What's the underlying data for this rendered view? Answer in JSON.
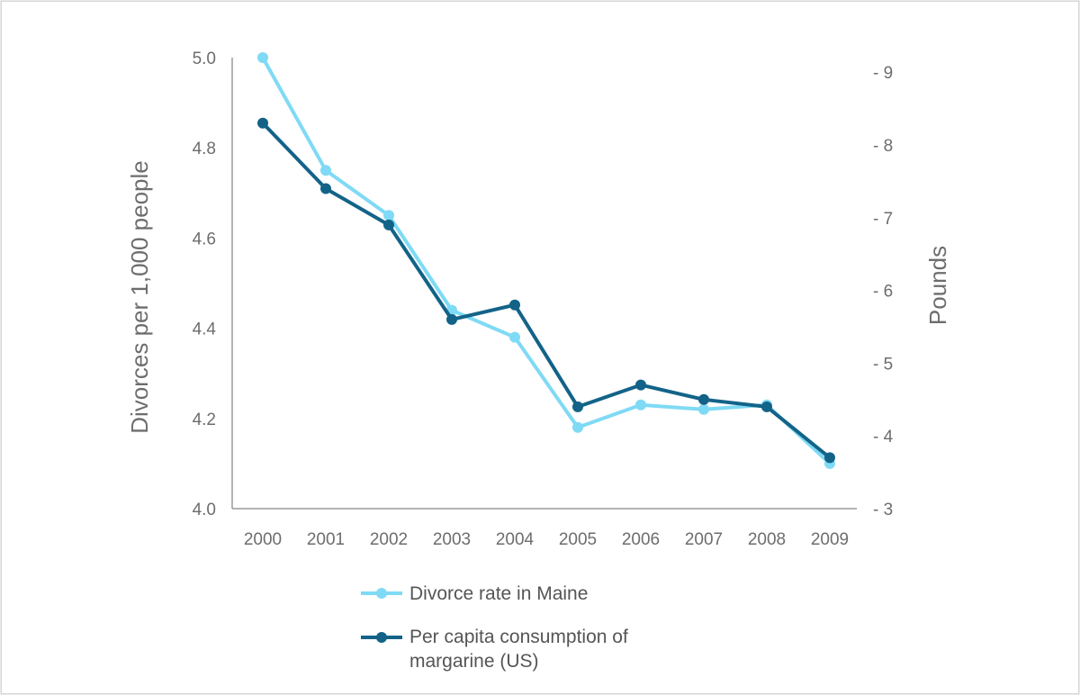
{
  "chart_data": {
    "type": "line",
    "title": "",
    "xlabel": "",
    "categories": [
      "2000",
      "2001",
      "2002",
      "2003",
      "2004",
      "2005",
      "2006",
      "2007",
      "2008",
      "2009"
    ],
    "y_left": {
      "label": "Divorces  per 1,000 people",
      "range": [
        4.0,
        5.0
      ],
      "ticks": [
        "4.0",
        "4.2",
        "4.4",
        "4.6",
        "4.8",
        "5.0"
      ]
    },
    "y_right": {
      "label": "Pounds",
      "range": [
        3,
        9.2
      ],
      "ticks": [
        "- 3",
        "- 4",
        "- 5",
        "- 6",
        "- 7",
        "- 8",
        "- 9"
      ]
    },
    "series": [
      {
        "name": "Divorce rate in Maine",
        "axis": "left",
        "color": "#7fdaf5",
        "values": [
          5.0,
          4.75,
          4.65,
          4.44,
          4.38,
          4.18,
          4.23,
          4.22,
          4.23,
          4.1
        ]
      },
      {
        "name": "Per capita consumption of margarine (US)",
        "axis": "right",
        "color": "#136388",
        "values": [
          8.3,
          7.4,
          6.9,
          5.6,
          5.8,
          4.4,
          4.7,
          4.5,
          4.4,
          3.7
        ]
      }
    ],
    "legend": {
      "position": "bottom",
      "entries": [
        "Divorce rate in Maine",
        "Per capita consumption of margarine (US)"
      ]
    },
    "grid": false
  }
}
